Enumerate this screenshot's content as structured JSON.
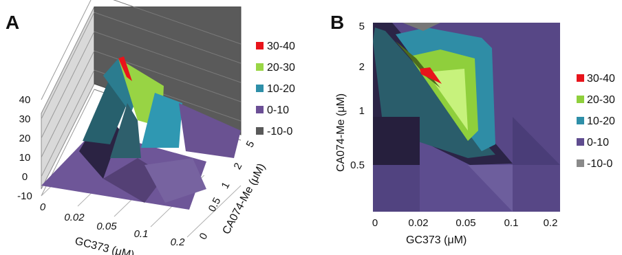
{
  "chart_data": [
    {
      "panel_label": "A",
      "type": "surface3d",
      "x_ticks": [
        "0",
        "0.02",
        "0.05",
        "0.1",
        "0.2"
      ],
      "y_ticks": [
        "0",
        "0.5",
        "1",
        "2",
        "5"
      ],
      "z_ticks": [
        "-10",
        "0",
        "10",
        "20",
        "30",
        "40"
      ],
      "xlabel": "GC373 (μM)",
      "ylabel": "CA074-Me (μM)",
      "zlim": [
        -10,
        40
      ],
      "grid": true,
      "legend_position": "right",
      "legend": [
        {
          "label": "30-40",
          "color": "#e8141b"
        },
        {
          "label": "20-30",
          "color": "#99d646"
        },
        {
          "label": "10-20",
          "color": "#2e8fa8"
        },
        {
          "label": "0-10",
          "color": "#6b4f95"
        },
        {
          "label": "-10-0",
          "color": "#595959"
        }
      ],
      "z_values": [
        [
          0,
          0,
          0,
          0,
          0
        ],
        [
          0,
          2,
          12,
          14,
          8
        ],
        [
          0,
          6,
          20,
          26,
          36
        ],
        [
          0,
          4,
          12,
          22,
          24
        ],
        [
          0,
          1,
          4,
          14,
          16
        ]
      ]
    },
    {
      "panel_label": "B",
      "type": "contour",
      "x_ticks": [
        "0",
        "0.02",
        "0.05",
        "0.1",
        "0.2"
      ],
      "y_ticks": [
        "0.5",
        "1",
        "2",
        "5"
      ],
      "xlabel": "GC373 (μM)",
      "ylabel": "CA074-Me (μM)",
      "legend_position": "right",
      "legend": [
        {
          "label": "30-40",
          "color": "#e8141b"
        },
        {
          "label": "20-30",
          "color": "#8fcf3c"
        },
        {
          "label": "10-20",
          "color": "#2e8fa8"
        },
        {
          "label": "0-10",
          "color": "#5f4c8f"
        },
        {
          "label": "-10-0",
          "color": "#8a8a8a"
        }
      ]
    }
  ]
}
